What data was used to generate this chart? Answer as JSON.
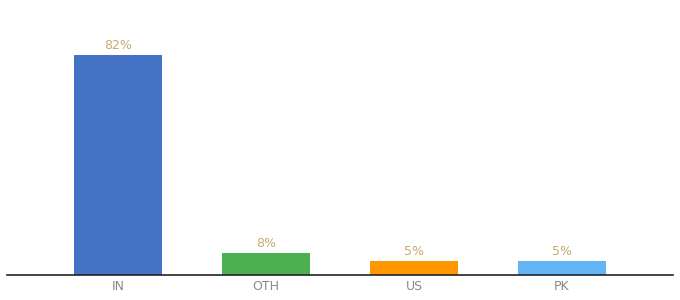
{
  "categories": [
    "IN",
    "OTH",
    "US",
    "PK"
  ],
  "values": [
    82,
    8,
    5,
    5
  ],
  "bar_colors": [
    "#4472c4",
    "#4caf50",
    "#ff9800",
    "#64b5f6"
  ],
  "label_texts": [
    "82%",
    "8%",
    "5%",
    "5%"
  ],
  "label_color": "#c8a96e",
  "ylim": [
    0,
    100
  ],
  "background_color": "#ffffff",
  "bar_width": 0.6,
  "tick_fontsize": 9,
  "label_fontsize": 9,
  "tick_color": "#888888"
}
